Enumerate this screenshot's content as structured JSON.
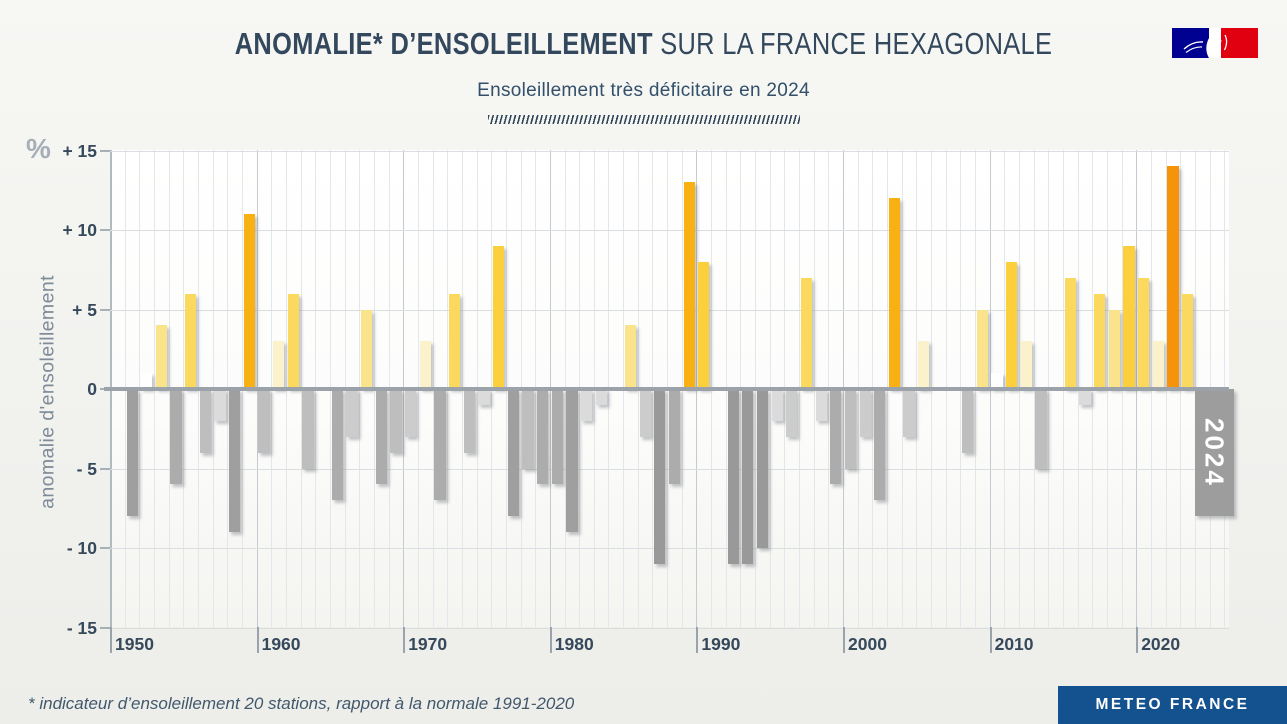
{
  "header": {
    "title_bold": "ANOMALIE* D’ENSOLEILLEMENT",
    "title_regular": " SUR LA FRANCE HEXAGONALE",
    "subtitle": "Ensoleillement très déficitaire en 2024"
  },
  "footer": {
    "note": "* indicateur d’ensoleillement 20 stations, rapport à la normale 1991-2020",
    "brand": "METEO FRANCE"
  },
  "colors": {
    "title_text": "#33485C",
    "axis_text": "#36495B",
    "axis_title_text": "#7E8B98",
    "zero_line": "#9BA2A9",
    "brand_blue": "#14518F",
    "logo_blue": "#000091",
    "logo_red": "#E1000F"
  },
  "chart_data": {
    "type": "bar",
    "title": "Anomalie d'ensoleillement sur la France hexagonale (%), 1951-2024",
    "xlabel": "",
    "ylabel": "anomalie d'ensoleillement",
    "y_unit": "%",
    "ylim": [
      -15,
      15
    ],
    "grid": "on",
    "legend_position": "none",
    "yticks": [
      15,
      10,
      5,
      0,
      -5,
      -10,
      -15
    ],
    "ytick_labels": [
      "+ 15",
      "+ 10",
      "+ 5",
      "0",
      "- 5",
      "- 10",
      "- 15"
    ],
    "xtick_years": [
      1950,
      1960,
      1970,
      1980,
      1990,
      2000,
      2010,
      2020
    ],
    "xtick_labels": [
      "1950",
      "1960",
      "1970",
      "1980",
      "1990",
      "2000",
      "2010",
      "2020"
    ],
    "years": [
      1951,
      1952,
      1953,
      1954,
      1955,
      1956,
      1957,
      1958,
      1959,
      1960,
      1961,
      1962,
      1963,
      1964,
      1965,
      1966,
      1967,
      1968,
      1969,
      1970,
      1971,
      1972,
      1973,
      1974,
      1975,
      1976,
      1977,
      1978,
      1979,
      1980,
      1981,
      1982,
      1983,
      1984,
      1985,
      1986,
      1987,
      1988,
      1989,
      1990,
      1991,
      1992,
      1993,
      1994,
      1995,
      1996,
      1997,
      1998,
      1999,
      2000,
      2001,
      2002,
      2003,
      2004,
      2005,
      2006,
      2007,
      2008,
      2009,
      2010,
      2011,
      2012,
      2013,
      2014,
      2015,
      2016,
      2017,
      2018,
      2019,
      2020,
      2021,
      2022,
      2023,
      2024
    ],
    "values": [
      -8,
      1,
      4,
      -6,
      6,
      -4,
      -2,
      -9,
      11,
      -4,
      3,
      6,
      -5,
      0,
      -7,
      -3,
      5,
      -6,
      -4,
      -3,
      3,
      -7,
      6,
      -4,
      -1,
      9,
      -8,
      -5,
      -6,
      -6,
      -9,
      -2,
      -1,
      0,
      4,
      -3,
      -11,
      -6,
      13,
      8,
      0,
      -11,
      -11,
      -10,
      -2,
      -3,
      7,
      -2,
      -6,
      -5,
      -3,
      -7,
      12,
      -3,
      3,
      0,
      0,
      -4,
      5,
      1,
      8,
      3,
      -5,
      0,
      7,
      -1,
      6,
      5,
      9,
      7,
      3,
      14,
      6,
      -8
    ],
    "highlight": {
      "year": 2024,
      "label": "2024",
      "color": "#9D9D9D"
    },
    "palette": {
      "positive": [
        [
          14,
          "#F5930B"
        ],
        [
          11,
          "#F9B013"
        ],
        [
          8,
          "#FCCF3C"
        ],
        [
          6,
          "#FBD95F"
        ],
        [
          4,
          "#F9E48C"
        ],
        [
          2,
          "#FBF2CB"
        ],
        [
          1,
          "#FFFFFF"
        ]
      ],
      "negative": [
        [
          10,
          "#999999"
        ],
        [
          8,
          "#9F9F9F"
        ],
        [
          6,
          "#ACACAC"
        ],
        [
          4,
          "#BEBEBE"
        ],
        [
          3,
          "#CCCCCC"
        ],
        [
          1,
          "#DBDBDB"
        ]
      ]
    }
  }
}
